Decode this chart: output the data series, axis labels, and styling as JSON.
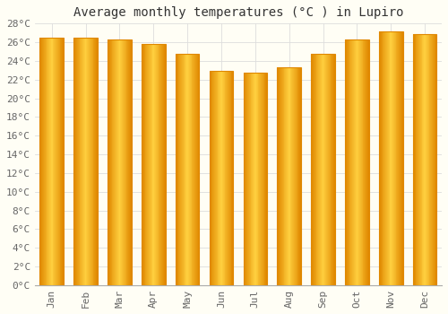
{
  "title": "Average monthly temperatures (°C ) in Lupiro",
  "months": [
    "Jan",
    "Feb",
    "Mar",
    "Apr",
    "May",
    "Jun",
    "Jul",
    "Aug",
    "Sep",
    "Oct",
    "Nov",
    "Dec"
  ],
  "values": [
    26.5,
    26.5,
    26.3,
    25.8,
    24.8,
    22.9,
    22.7,
    23.3,
    24.8,
    26.3,
    27.2,
    26.9
  ],
  "bar_color_center": "#FFD040",
  "bar_color_edge": "#E08800",
  "ylim": [
    0,
    28
  ],
  "ytick_step": 2,
  "background_color": "#FFFEF5",
  "grid_color": "#DDDDDD",
  "title_fontsize": 10,
  "tick_fontsize": 8,
  "font_family": "monospace"
}
